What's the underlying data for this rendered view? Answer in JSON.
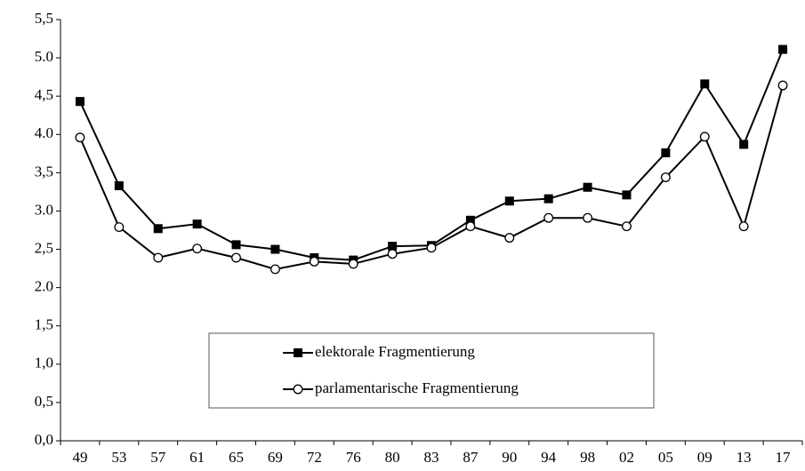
{
  "chart_data": {
    "type": "line",
    "categories": [
      "49",
      "53",
      "57",
      "61",
      "65",
      "69",
      "72",
      "76",
      "80",
      "83",
      "87",
      "90",
      "94",
      "98",
      "02",
      "05",
      "09",
      "13",
      "17"
    ],
    "series": [
      {
        "name": "elektorale Fragmentierung",
        "color": "#000000",
        "marker": "square",
        "values": [
          4.43,
          3.33,
          2.77,
          2.83,
          2.56,
          2.5,
          2.39,
          2.36,
          2.54,
          2.55,
          2.88,
          3.13,
          3.16,
          3.31,
          3.21,
          3.76,
          4.66,
          3.87,
          5.11
        ]
      },
      {
        "name": "parlamentarische Fragmentierung",
        "color": "#000000",
        "marker": "circle",
        "values": [
          3.96,
          2.79,
          2.39,
          2.51,
          2.39,
          2.24,
          2.34,
          2.31,
          2.44,
          2.52,
          2.8,
          2.65,
          2.91,
          2.91,
          2.8,
          3.44,
          3.97,
          2.8,
          4.64
        ]
      }
    ],
    "ylim": [
      0,
      5.5
    ],
    "yticks": [
      {
        "value": 0,
        "label": "0,0"
      },
      {
        "value": 0.5,
        "label": "0,5"
      },
      {
        "value": 1,
        "label": "1,0"
      },
      {
        "value": 1.5,
        "label": "1,5"
      },
      {
        "value": 2,
        "label": "2.0"
      },
      {
        "value": 2.5,
        "label": "2,5"
      },
      {
        "value": 3,
        "label": "3.0"
      },
      {
        "value": 3.5,
        "label": "3,5"
      },
      {
        "value": 4,
        "label": "4.0"
      },
      {
        "value": 4.5,
        "label": "4,5"
      },
      {
        "value": 5,
        "label": "5.0"
      },
      {
        "value": 5.5,
        "label": "5,5"
      }
    ],
    "grid": false
  }
}
